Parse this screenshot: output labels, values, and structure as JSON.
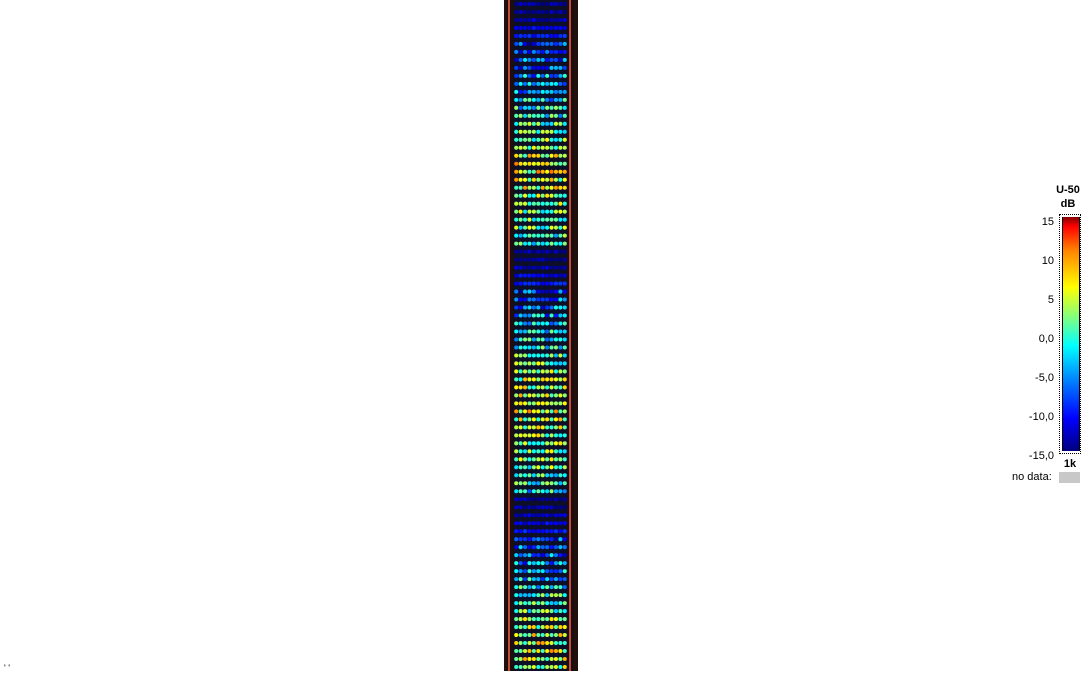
{
  "chart_data": {
    "type": "heatmap",
    "description_units": "dB",
    "legend": {
      "title_line1": "U-50",
      "title_line2": "dB",
      "ticks": [
        "15",
        "10",
        "5",
        "0,0",
        "-5,0",
        "-10,0",
        "-15,0"
      ],
      "tick_values": [
        15,
        10,
        5,
        0,
        -5,
        -10,
        -15
      ],
      "range": [
        -15,
        15
      ],
      "frequency": "1k",
      "no_data_label": "no data:",
      "no_data_color": "#c8c8c8",
      "colormap": [
        "#00007f",
        "#0000ff",
        "#0080ff",
        "#00ffff",
        "#80ff80",
        "#ffff00",
        "#ff8000",
        "#ff0000",
        "#800000"
      ]
    },
    "grid": {
      "columns": 12,
      "rows": 84,
      "band_profile_db": [
        -14,
        -14,
        -13,
        -12,
        -11,
        -10,
        -9,
        -9,
        -8,
        -7,
        -6,
        -6,
        -5,
        -4,
        -3,
        -2,
        -1,
        0,
        1,
        2,
        3,
        3,
        2,
        2,
        1,
        1,
        0,
        0,
        -1,
        -2,
        -3,
        -14,
        -14,
        -13,
        -12,
        -11,
        -10,
        -9,
        -8,
        -7,
        -6,
        -5,
        -4,
        -3,
        -2,
        -1,
        0,
        1,
        2,
        3,
        3,
        3,
        2,
        2,
        1,
        1,
        0,
        0,
        -1,
        -2,
        -3,
        -4,
        -14,
        -14,
        -13,
        -12,
        -11,
        -10,
        -9,
        -8,
        -7,
        -6,
        -5,
        -4,
        -3,
        -2,
        -1,
        0,
        1,
        2,
        2,
        3,
        2,
        1
      ]
    }
  },
  "corner_text": "' '"
}
